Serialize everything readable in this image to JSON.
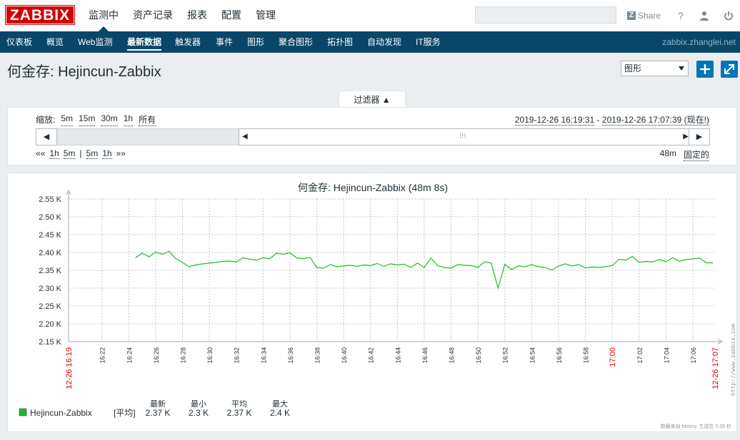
{
  "header": {
    "logo": "ZABBIX",
    "menu": [
      "监测中",
      "资产记录",
      "报表",
      "配置",
      "管理"
    ],
    "search": {
      "placeholder": "",
      "value": ""
    },
    "share_label": "Share",
    "help_icon": "help-icon",
    "user_icon": "user-icon",
    "logout_icon": "power-icon"
  },
  "subnav": {
    "items": [
      "仪表板",
      "概览",
      "Web监测",
      "最新数据",
      "触发器",
      "事件",
      "图形",
      "聚合图形",
      "拓扑图",
      "自动发现",
      "IT服务"
    ],
    "active": "最新数据",
    "server": "zabbix.zhanglei.net"
  },
  "page": {
    "title": "何金存: Hejincun-Zabbix",
    "view_select": "图形",
    "add_icon": "plus-icon",
    "fullscreen_icon": "fullscreen-icon"
  },
  "filter": {
    "tab_label": "过滤器 ▲",
    "zoom_label": "缩放:",
    "zoom_options": [
      "5m",
      "15m",
      "30m",
      "1h",
      "所有"
    ],
    "range_from": "2019-12-26 16:19:31",
    "range_sep": " - ",
    "range_to": "2019-12-26 17:07:39",
    "range_now": " (现在!)",
    "left_arrow": "◀",
    "right_arrow": "▶",
    "grip": "⁝⁝⁝",
    "nav_back_all": "««",
    "nav_back": [
      "1h",
      "5m"
    ],
    "nav_sep": "|",
    "nav_fwd": [
      "5m",
      "1h"
    ],
    "nav_fwd_all": "»»",
    "period": "48m",
    "fixed": "固定的"
  },
  "graph": {
    "title": "何金存: Hejincun-Zabbix (48m 8s)",
    "watermark": "http://www.zabbix.com",
    "footer_note": "数据来自 history. 生成在 0.05 秒.",
    "legend": {
      "series_name": "Hejincun-Zabbix",
      "agg_label": "[平均]",
      "cols": [
        {
          "label": "最新",
          "value": "2.37 K"
        },
        {
          "label": "最小",
          "value": "2.3 K"
        },
        {
          "label": "平均",
          "value": "2.37 K"
        },
        {
          "label": "最大",
          "value": "2.4 K"
        }
      ],
      "color": "#1fbc1f"
    }
  },
  "chart_data": {
    "type": "line",
    "title": "何金存: Hejincun-Zabbix (48m 8s)",
    "ylim": [
      2150,
      2550
    ],
    "y_ticks": [
      "2.15 K",
      "2.20 K",
      "2.25 K",
      "2.30 K",
      "2.35 K",
      "2.40 K",
      "2.45 K",
      "2.50 K",
      "2.55 K"
    ],
    "y_tick_values": [
      2150,
      2200,
      2250,
      2300,
      2350,
      2400,
      2450,
      2500,
      2550
    ],
    "x_start_label": "12-26 16:19",
    "x_end_label": "12-26 17:07",
    "x_ticks": [
      "16:22",
      "16:24",
      "16:26",
      "16:28",
      "16:30",
      "16:32",
      "16:34",
      "16:36",
      "16:38",
      "16:40",
      "16:42",
      "16:44",
      "16:46",
      "16:48",
      "16:50",
      "16:52",
      "16:54",
      "16:56",
      "16:58",
      "17:00",
      "17:02",
      "17:04",
      "17:06"
    ],
    "x_tick_highlight": [
      "17:00"
    ],
    "grid": true,
    "series": [
      {
        "name": "Hejincun-Zabbix",
        "color": "#1fbc1f",
        "x": [
          "16:24:30",
          "16:25:00",
          "16:25:30",
          "16:26:00",
          "16:26:30",
          "16:27:00",
          "16:27:30",
          "16:28:00",
          "16:28:30",
          "16:29:00",
          "16:29:30",
          "16:30:00",
          "16:30:30",
          "16:31:00",
          "16:31:30",
          "16:32:00",
          "16:32:30",
          "16:33:00",
          "16:33:30",
          "16:34:00",
          "16:34:30",
          "16:35:00",
          "16:35:30",
          "16:36:00",
          "16:36:30",
          "16:37:00",
          "16:37:30",
          "16:38:00",
          "16:38:30",
          "16:39:00",
          "16:39:30",
          "16:40:00",
          "16:40:30",
          "16:41:00",
          "16:41:30",
          "16:42:00",
          "16:42:30",
          "16:43:00",
          "16:43:30",
          "16:44:00",
          "16:44:30",
          "16:45:00",
          "16:45:30",
          "16:46:00",
          "16:46:30",
          "16:47:00",
          "16:47:30",
          "16:48:00",
          "16:48:30",
          "16:49:00",
          "16:49:30",
          "16:50:00",
          "16:50:30",
          "16:51:00",
          "16:51:30",
          "16:52:00",
          "16:52:30",
          "16:53:00",
          "16:53:30",
          "16:54:00",
          "16:54:30",
          "16:55:00",
          "16:55:30",
          "16:56:00",
          "16:56:30",
          "16:57:00",
          "16:57:30",
          "16:58:00",
          "16:58:30",
          "16:59:00",
          "16:59:30",
          "17:00:00",
          "17:00:30",
          "17:01:00",
          "17:01:30",
          "17:02:00",
          "17:02:30",
          "17:03:00",
          "17:03:30",
          "17:04:00",
          "17:04:30",
          "17:05:00",
          "17:05:30",
          "17:06:00",
          "17:06:30",
          "17:07:00",
          "17:07:30"
        ],
        "values": [
          2385,
          2398,
          2388,
          2401,
          2395,
          2403,
          2383,
          2372,
          2360,
          2365,
          2368,
          2370,
          2372,
          2375,
          2376,
          2373,
          2385,
          2381,
          2378,
          2385,
          2382,
          2398,
          2395,
          2399,
          2385,
          2382,
          2386,
          2358,
          2356,
          2366,
          2360,
          2362,
          2364,
          2361,
          2365,
          2363,
          2369,
          2361,
          2368,
          2365,
          2367,
          2358,
          2370,
          2358,
          2384,
          2363,
          2358,
          2356,
          2366,
          2364,
          2363,
          2358,
          2374,
          2370,
          2300,
          2367,
          2352,
          2362,
          2360,
          2366,
          2360,
          2358,
          2350,
          2362,
          2368,
          2362,
          2366,
          2357,
          2359,
          2358,
          2360,
          2363,
          2381,
          2378,
          2389,
          2372,
          2375,
          2373,
          2380,
          2374,
          2385,
          2375,
          2380,
          2382,
          2384,
          2371,
          2371
        ]
      }
    ]
  }
}
